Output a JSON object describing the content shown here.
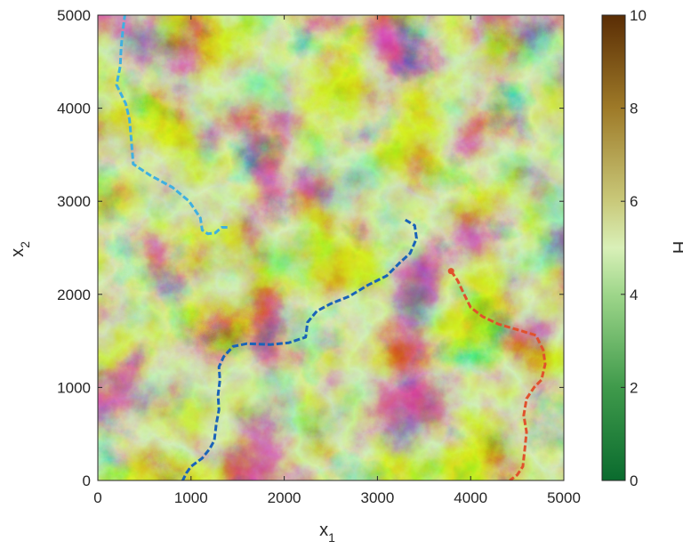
{
  "chart_data": {
    "type": "heatmap",
    "title": "",
    "xlabel": "x",
    "xlabel_subscript": "1",
    "ylabel": "x",
    "ylabel_subscript": "2",
    "xlim": [
      0,
      5000
    ],
    "ylim": [
      0,
      5000
    ],
    "x_ticks": [
      0,
      1000,
      2000,
      3000,
      4000,
      5000
    ],
    "y_ticks": [
      0,
      1000,
      2000,
      3000,
      4000,
      5000
    ],
    "x_tick_labels": [
      "0",
      "1000",
      "2000",
      "3000",
      "4000",
      "5000"
    ],
    "y_tick_labels": [
      "0",
      "1000",
      "2000",
      "3000",
      "4000",
      "5000"
    ],
    "colorbar": {
      "label": "H",
      "range": [
        0,
        10
      ],
      "ticks": [
        0,
        2,
        4,
        6,
        8,
        10
      ],
      "tick_labels": [
        "0",
        "2",
        "4",
        "6",
        "8",
        "10"
      ],
      "colormap_stops": [
        {
          "value": 0,
          "color": "#0a6b2e"
        },
        {
          "value": 2,
          "color": "#3f9a4b"
        },
        {
          "value": 4,
          "color": "#9ed68a"
        },
        {
          "value": 5,
          "color": "#d9f0b8"
        },
        {
          "value": 6,
          "color": "#c9c97a"
        },
        {
          "value": 8,
          "color": "#9e7a28"
        },
        {
          "value": 10,
          "color": "#5a2d05"
        }
      ]
    },
    "paths": [
      {
        "color": "#3fb0e0",
        "style": "dashed",
        "points": [
          [
            1390,
            2720
          ],
          [
            1330,
            2720
          ],
          [
            1260,
            2660
          ],
          [
            1180,
            2650
          ],
          [
            1120,
            2690
          ],
          [
            1100,
            2820
          ],
          [
            980,
            3000
          ],
          [
            800,
            3150
          ],
          [
            560,
            3280
          ],
          [
            380,
            3400
          ],
          [
            360,
            3650
          ],
          [
            340,
            3880
          ],
          [
            300,
            4050
          ],
          [
            200,
            4250
          ],
          [
            240,
            4450
          ],
          [
            250,
            4650
          ],
          [
            270,
            4850
          ],
          [
            290,
            5000
          ]
        ]
      },
      {
        "color": "#1a63b8",
        "style": "dashed",
        "points": [
          [
            3300,
            2800
          ],
          [
            3400,
            2740
          ],
          [
            3420,
            2600
          ],
          [
            3350,
            2440
          ],
          [
            3250,
            2350
          ],
          [
            3100,
            2200
          ],
          [
            2900,
            2100
          ],
          [
            2700,
            1980
          ],
          [
            2500,
            1900
          ],
          [
            2350,
            1820
          ],
          [
            2250,
            1700
          ],
          [
            2230,
            1540
          ],
          [
            2050,
            1480
          ],
          [
            1850,
            1460
          ],
          [
            1600,
            1470
          ],
          [
            1450,
            1440
          ],
          [
            1350,
            1330
          ],
          [
            1300,
            1220
          ],
          [
            1310,
            1080
          ],
          [
            1290,
            920
          ],
          [
            1300,
            760
          ],
          [
            1270,
            600
          ],
          [
            1250,
            430
          ],
          [
            1200,
            340
          ],
          [
            1120,
            240
          ],
          [
            1000,
            150
          ],
          [
            950,
            80
          ],
          [
            910,
            0
          ]
        ]
      },
      {
        "color": "#e0522d",
        "style": "dashed",
        "points": [
          [
            3790,
            2250
          ],
          [
            3860,
            2150
          ],
          [
            3930,
            2000
          ],
          [
            4000,
            1860
          ],
          [
            4130,
            1760
          ],
          [
            4300,
            1680
          ],
          [
            4500,
            1620
          ],
          [
            4700,
            1560
          ],
          [
            4780,
            1400
          ],
          [
            4800,
            1250
          ],
          [
            4760,
            1080
          ],
          [
            4680,
            1000
          ],
          [
            4600,
            880
          ],
          [
            4570,
            700
          ],
          [
            4600,
            520
          ],
          [
            4580,
            330
          ],
          [
            4560,
            150
          ],
          [
            4500,
            60
          ],
          [
            4420,
            0
          ]
        ]
      }
    ],
    "path_start_points": [
      {
        "x": 3790,
        "y": 2250,
        "color": "#e0522d"
      }
    ]
  }
}
